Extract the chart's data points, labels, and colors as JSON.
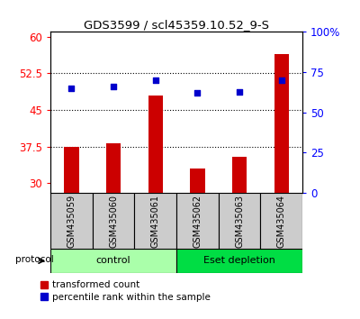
{
  "title": "GDS3599 / scl45359.10.52_9-S",
  "samples": [
    "GSM435059",
    "GSM435060",
    "GSM435061",
    "GSM435062",
    "GSM435063",
    "GSM435064"
  ],
  "red_values": [
    37.5,
    38.2,
    48.0,
    33.0,
    35.5,
    56.5
  ],
  "blue_values": [
    65,
    66,
    70,
    62,
    63,
    70
  ],
  "groups": [
    {
      "label": "control",
      "indices": [
        0,
        1,
        2
      ],
      "color": "#aaffaa"
    },
    {
      "label": "Eset depletion",
      "indices": [
        3,
        4,
        5
      ],
      "color": "#00dd44"
    }
  ],
  "ylim_left": [
    28,
    61
  ],
  "ylim_right": [
    0,
    100
  ],
  "yticks_left": [
    30,
    37.5,
    45,
    52.5,
    60
  ],
  "yticks_right": [
    0,
    25,
    50,
    75,
    100
  ],
  "ytick_labels_left": [
    "30",
    "37.5",
    "45",
    "52.5",
    "60"
  ],
  "ytick_labels_right": [
    "0",
    "25",
    "50",
    "75",
    "100%"
  ],
  "hlines": [
    37.5,
    45,
    52.5
  ],
  "bar_color": "#CC0000",
  "dot_color": "#0000CC",
  "bar_bottom": 28,
  "protocol_label": "protocol",
  "legend_red": "transformed count",
  "legend_blue": "percentile rank within the sample",
  "label_area_color": "#cccccc",
  "bar_width": 0.35
}
